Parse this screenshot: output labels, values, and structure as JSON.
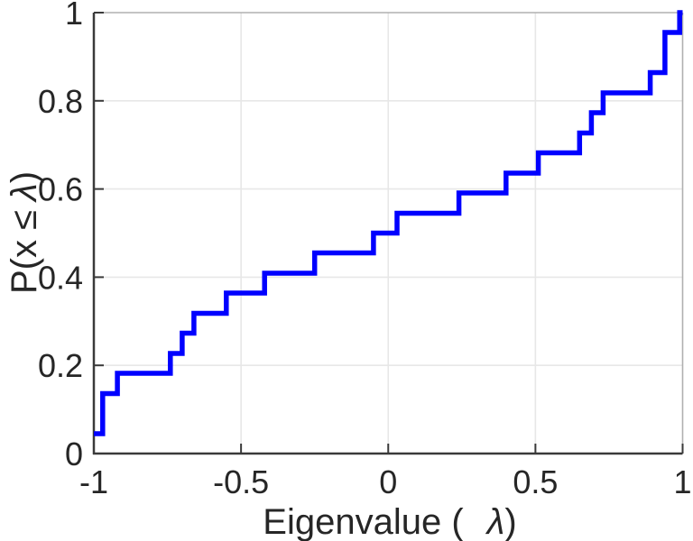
{
  "figure": {
    "background": "#ffffff"
  },
  "chart_data": {
    "type": "line",
    "subtype": "empirical-cdf-stairs",
    "title": "",
    "xlabel": "Eigenvalue ( λ)",
    "xlabel_parts": {
      "prefix": "Eigenvalue (",
      "symbol": "λ",
      "suffix": ")"
    },
    "ylabel": "P(x ≤ λ)",
    "ylabel_parts": {
      "prefix": "P(x ",
      "leq": "≤",
      "space": " ",
      "symbol": "λ",
      "suffix": ")"
    },
    "xlim": [
      -1,
      1
    ],
    "ylim": [
      0,
      1
    ],
    "x_ticks": [
      -1,
      -0.5,
      0,
      0.5,
      1
    ],
    "x_tick_labels": [
      "-1",
      "-0.5",
      "0",
      "0.5",
      "1"
    ],
    "y_ticks": [
      0,
      0.2,
      0.4,
      0.6,
      0.8,
      1
    ],
    "y_tick_labels": [
      "0",
      "0.2",
      "0.4",
      "0.6",
      "0.8",
      "1"
    ],
    "grid": true,
    "legend": null,
    "n_points": 22,
    "eigenvalues": [
      -1.0,
      -0.97,
      -0.97,
      -0.92,
      -0.74,
      -0.7,
      -0.66,
      -0.55,
      -0.42,
      -0.25,
      -0.05,
      0.03,
      0.24,
      0.4,
      0.51,
      0.65,
      0.69,
      0.73,
      0.89,
      0.94,
      0.94,
      0.99
    ],
    "cdf_levels": [
      0.045,
      0.091,
      0.136,
      0.182,
      0.227,
      0.273,
      0.318,
      0.364,
      0.409,
      0.455,
      0.5,
      0.545,
      0.591,
      0.636,
      0.682,
      0.727,
      0.773,
      0.818,
      0.864,
      0.909,
      0.955,
      1.0
    ]
  },
  "style": {
    "line_color": "#0000ff",
    "line_width": 5.5,
    "grid_color": "#e7e7e7",
    "axis_dark_color": "#3a3a3a",
    "axis_light_color": "#b0b0b0",
    "text_color": "#262626",
    "tick_length": 11
  }
}
